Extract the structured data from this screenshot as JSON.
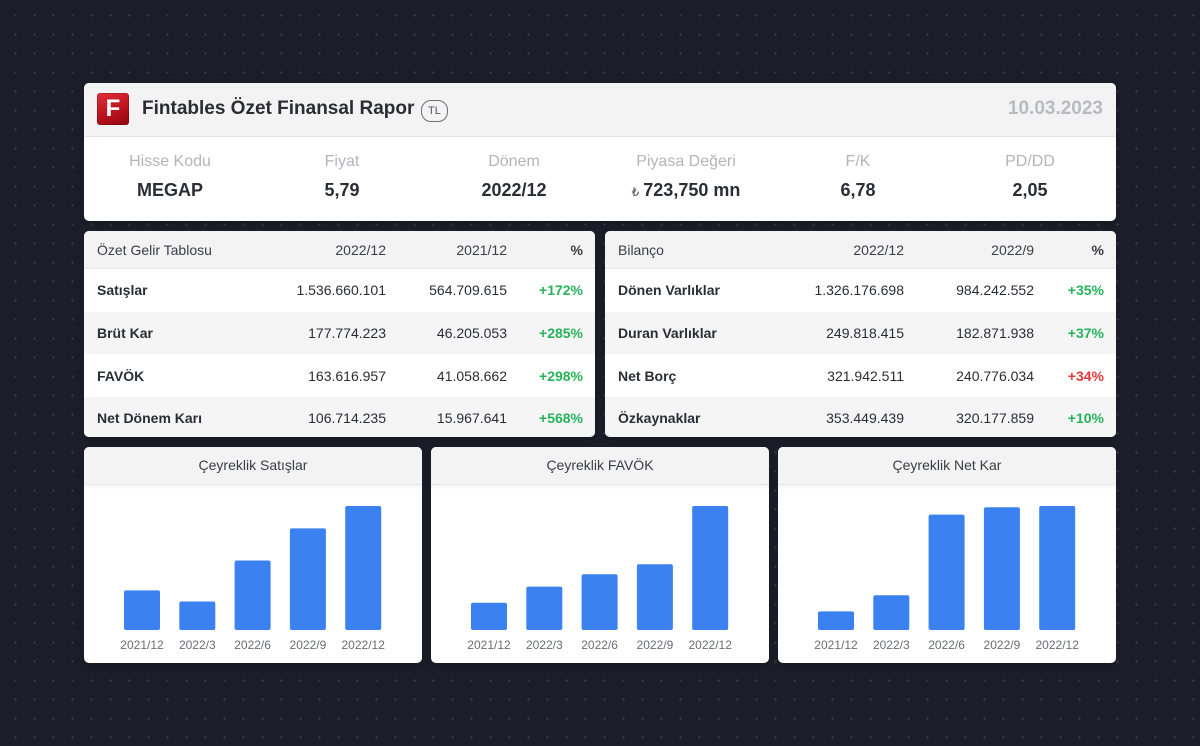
{
  "header": {
    "logo_letter": "F",
    "title": "Fintables Özet Finansal Rapor",
    "currency_badge": "TL",
    "date": "10.03.2023"
  },
  "kpis": [
    {
      "label": "Hisse Kodu",
      "value": "MEGAP"
    },
    {
      "label": "Fiyat",
      "value": "5,79"
    },
    {
      "label": "Dönem",
      "value": "2022/12"
    },
    {
      "label": "Piyasa Değeri",
      "currency": "₺",
      "value": "723,750 mn"
    },
    {
      "label": "F/K",
      "value": "6,78"
    },
    {
      "label": "PD/DD",
      "value": "2,05"
    }
  ],
  "income_table": {
    "headers": [
      "Özet Gelir Tablosu",
      "2022/12",
      "2021/12",
      "%"
    ],
    "rows": [
      {
        "label": "Satışlar",
        "v1": "1.536.660.101",
        "v2": "564.709.615",
        "pct": "+172%"
      },
      {
        "label": "Brüt Kar",
        "v1": "177.774.223",
        "v2": "46.205.053",
        "pct": "+285%"
      },
      {
        "label": "FAVÖK",
        "v1": "163.616.957",
        "v2": "41.058.662",
        "pct": "+298%"
      },
      {
        "label": "Net Dönem Karı",
        "v1": "106.714.235",
        "v2": "15.967.641",
        "pct": "+568%"
      }
    ]
  },
  "balance_table": {
    "headers": [
      "Bilanço",
      "2022/12",
      "2022/9",
      "%"
    ],
    "rows": [
      {
        "label": "Dönen Varlıklar",
        "v1": "1.326.176.698",
        "v2": "984.242.552",
        "pct": "+35%"
      },
      {
        "label": "Duran Varlıklar",
        "v1": "249.818.415",
        "v2": "182.871.938",
        "pct": "+37%"
      },
      {
        "label": "Net Borç",
        "v1": "321.942.511",
        "v2": "240.776.034",
        "pct": "+34%"
      },
      {
        "label": "Özkaynaklar",
        "v1": "353.449.439",
        "v2": "320.177.859",
        "pct": "+10%"
      }
    ]
  },
  "colors": {
    "positive": "#26b35a",
    "negative": "#e53a3a",
    "bar": "#3b82f0",
    "brand": "#c8161f"
  },
  "chart_data": [
    {
      "type": "bar",
      "title": "Çeyreklik Satışlar",
      "categories": [
        "2021/12",
        "2022/3",
        "2022/6",
        "2022/9",
        "2022/12"
      ],
      "values": [
        32,
        23,
        56,
        82,
        100
      ],
      "ylim": [
        0,
        100
      ]
    },
    {
      "type": "bar",
      "title": "Çeyreklik FAVÖK",
      "categories": [
        "2021/12",
        "2022/3",
        "2022/6",
        "2022/9",
        "2022/12"
      ],
      "values": [
        22,
        35,
        45,
        53,
        100
      ],
      "ylim": [
        0,
        100
      ]
    },
    {
      "type": "bar",
      "title": "Çeyreklik Net Kar",
      "categories": [
        "2021/12",
        "2022/3",
        "2022/6",
        "2022/9",
        "2022/12"
      ],
      "values": [
        15,
        28,
        93,
        99,
        100
      ],
      "ylim": [
        0,
        100
      ]
    }
  ]
}
